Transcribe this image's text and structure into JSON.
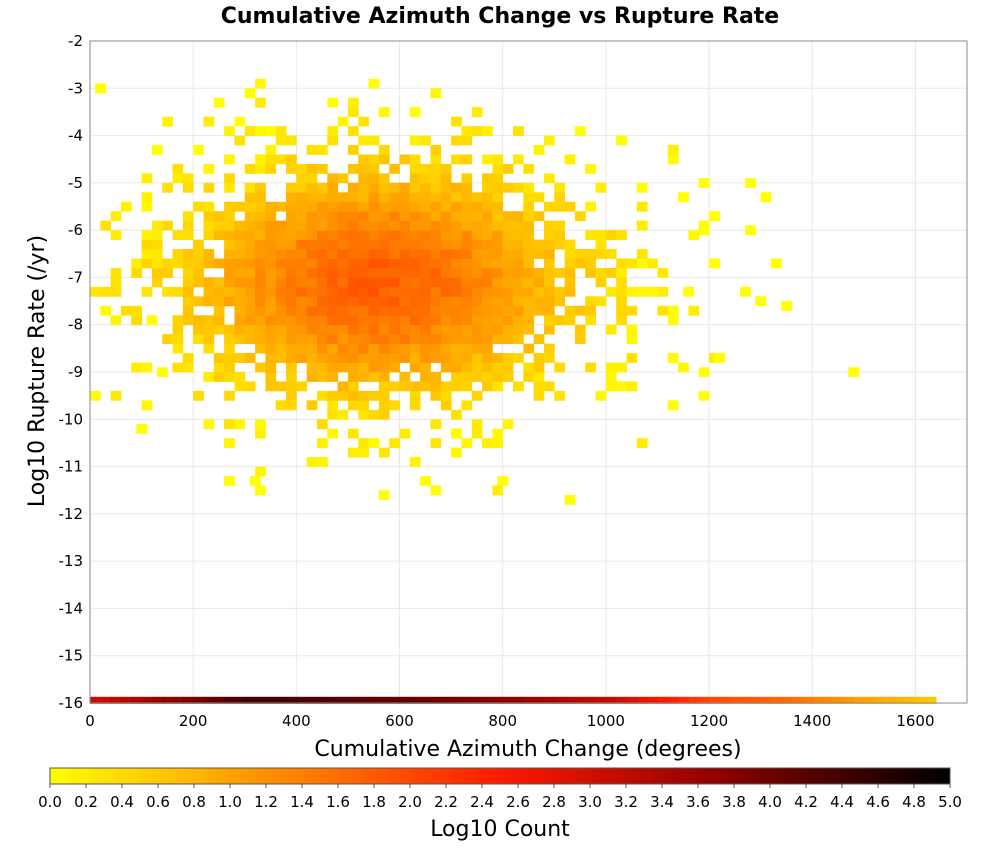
{
  "chart_data": {
    "type": "heatmap",
    "title": "Cumulative Azimuth Change vs Rupture Rate",
    "xlabel": "Cumulative Azimuth Change (degrees)",
    "ylabel": "Log10 Rupture Rate (/yr)",
    "xlim": [
      0,
      1700
    ],
    "ylim": [
      -16,
      -2
    ],
    "x_ticks": [
      "0",
      "200",
      "400",
      "600",
      "800",
      "1000",
      "1200",
      "1400",
      "1600"
    ],
    "y_ticks": [
      "-2",
      "-3",
      "-4",
      "-5",
      "-6",
      "-7",
      "-8",
      "-9",
      "-10",
      "-11",
      "-12",
      "-13",
      "-14",
      "-15",
      "-16"
    ],
    "grid": true,
    "bin": {
      "dx": 20,
      "dy": 0.2
    },
    "colorbar": {
      "label": "Log10 Count",
      "range": [
        0,
        5
      ],
      "ticks": [
        "0.0",
        "0.2",
        "0.4",
        "0.6",
        "0.8",
        "1.0",
        "1.2",
        "1.4",
        "1.6",
        "1.8",
        "2.0",
        "2.2",
        "2.4",
        "2.6",
        "2.8",
        "3.0",
        "3.2",
        "3.4",
        "3.6",
        "3.8",
        "4.0",
        "4.2",
        "4.4",
        "4.6",
        "4.8",
        "5.0"
      ],
      "colors": [
        "#ffff00",
        "#ff8c00",
        "#ff1a00",
        "#8b0000",
        "#000000"
      ]
    },
    "density_model": {
      "core_center": [
        560,
        -7.1
      ],
      "core_spread": [
        250,
        1.6
      ],
      "core_peak_log10_count": 1.75,
      "x_extent": [
        0,
        1640
      ],
      "y_extent": [
        -11.8,
        -3.0
      ]
    },
    "outliers": [
      {
        "x": 1470,
        "y": -9.1,
        "c": 0.0
      },
      {
        "x": 1340,
        "y": -7.7,
        "c": 0.0
      },
      {
        "x": 1320,
        "y": -6.8,
        "c": 0.0
      },
      {
        "x": 1300,
        "y": -5.4,
        "c": 0.0
      },
      {
        "x": 1270,
        "y": -6.1,
        "c": 0.0
      },
      {
        "x": 1270,
        "y": -5.1,
        "c": 0.0
      },
      {
        "x": 1290,
        "y": -7.6,
        "c": 0.0
      },
      {
        "x": 1260,
        "y": -7.4,
        "c": 0.0
      },
      {
        "x": 1180,
        "y": -9.1,
        "c": 0.0
      },
      {
        "x": 1210,
        "y": -8.8,
        "c": 0.0
      },
      {
        "x": 1180,
        "y": -5.1,
        "c": 0.0
      },
      {
        "x": 1180,
        "y": -6.1,
        "c": 0.0
      },
      {
        "x": 1150,
        "y": -7.4,
        "c": 0.0
      },
      {
        "x": 1200,
        "y": -6.8,
        "c": 0.0
      },
      {
        "x": 310,
        "y": -11.4,
        "c": 0.0
      },
      {
        "x": 560,
        "y": -11.7,
        "c": 0.0
      },
      {
        "x": 790,
        "y": -11.4,
        "c": 0.0
      },
      {
        "x": 640,
        "y": -11.4,
        "c": 0.0
      },
      {
        "x": 90,
        "y": -10.3,
        "c": 0.0
      },
      {
        "x": 130,
        "y": -9.1,
        "c": 0.0
      },
      {
        "x": 110,
        "y": -8.0,
        "c": 0.0
      },
      {
        "x": 10,
        "y": -3.1,
        "c": 0.0
      }
    ],
    "bottom_strip": {
      "y": -16,
      "x_extent": [
        0,
        1640
      ],
      "stops": [
        {
          "x": 0,
          "c": 3.0
        },
        {
          "x": 300,
          "c": 4.4
        },
        {
          "x": 700,
          "c": 4.0
        },
        {
          "x": 1000,
          "c": 3.2
        },
        {
          "x": 1200,
          "c": 2.0
        },
        {
          "x": 1350,
          "c": 1.6
        },
        {
          "x": 1500,
          "c": 1.0
        },
        {
          "x": 1640,
          "c": 0.6
        }
      ]
    }
  }
}
